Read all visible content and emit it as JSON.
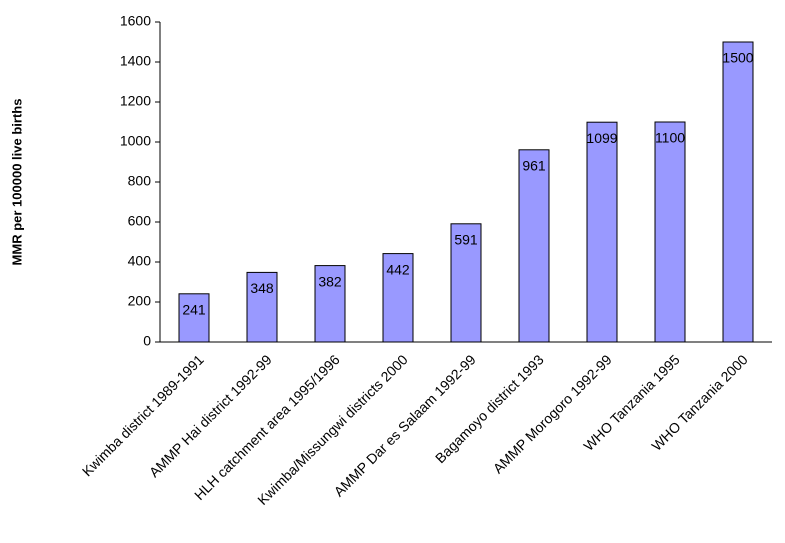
{
  "chart_data": {
    "type": "bar",
    "y_axis_label": "MMR per 100000 live births",
    "categories": [
      "Kwimba district 1989-1991",
      "AMMP Hai district 1992-99",
      "HLH catchment area 1995/1996",
      "Kwimba/Missungwi districts 2000",
      "AMMP Dar es Salaam 1992-99",
      "Bagamoyo district 1993",
      "AMMP Morogoro 1992-99",
      "WHO Tanzania 1995",
      "WHO Tanzania 2000"
    ],
    "values": [
      241,
      348,
      382,
      442,
      591,
      961,
      1099,
      1100,
      1500
    ],
    "color": "#9999ff",
    "ylim": [
      0,
      1600
    ],
    "yticks": [
      0,
      200,
      400,
      600,
      800,
      1000,
      1200,
      1400,
      1600
    ],
    "grid": false
  }
}
